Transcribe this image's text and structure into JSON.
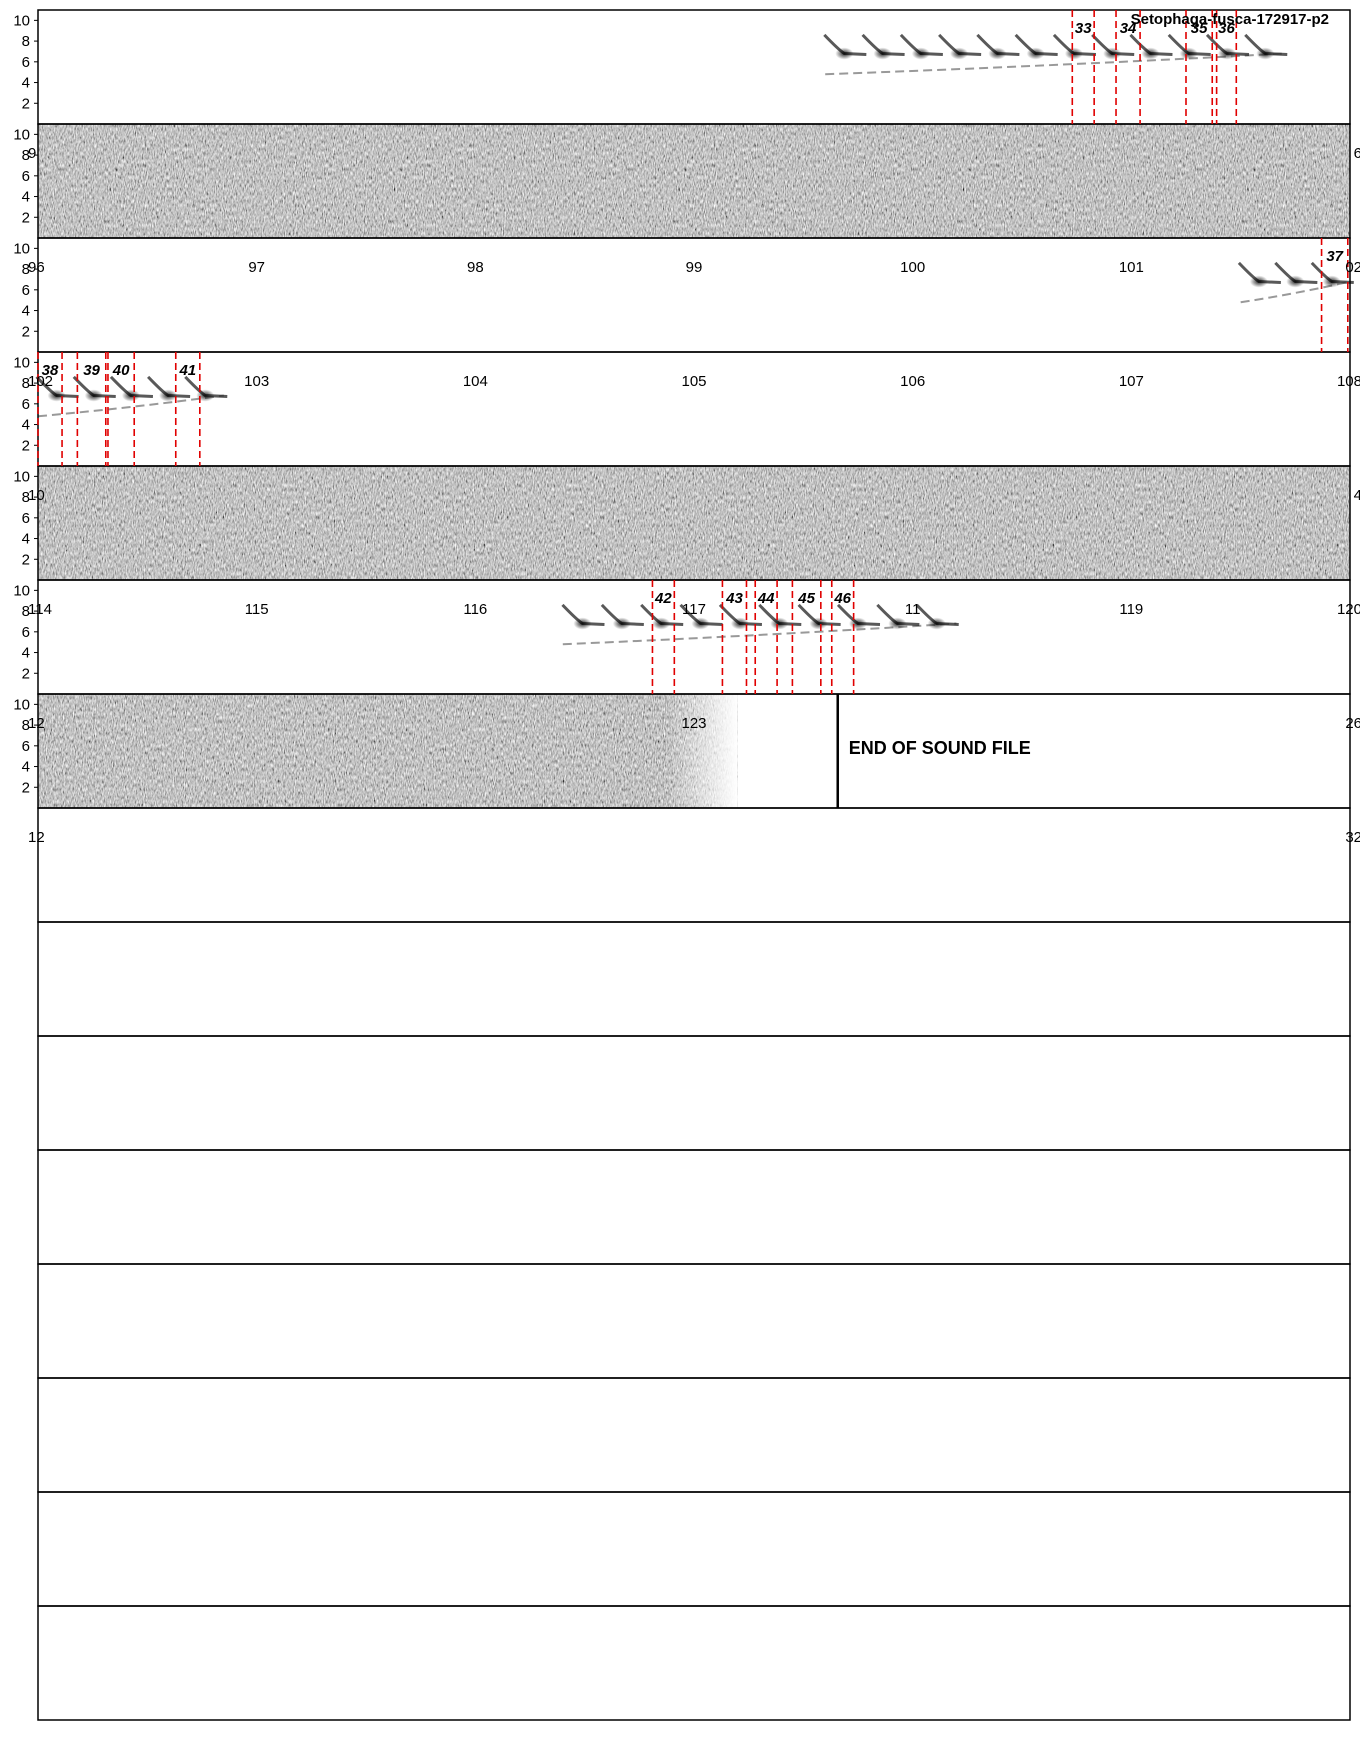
{
  "title": "Setophaga-fusca-172917-p2",
  "end_text": "END OF SOUND FILE",
  "colors": {
    "marker": "#e00000",
    "frame": "#000000",
    "paper": "#ffffff"
  },
  "chart_data": {
    "type": "spectrogram",
    "title": "Setophaga-fusca-172917-p2",
    "seconds_per_row": 6,
    "frequency_ticks_khz": [
      10,
      8,
      6,
      4,
      2
    ],
    "row_count": 15,
    "rows": [
      {
        "start": 84,
        "end": 90,
        "noise": false,
        "ticks": [],
        "freq_ticks": [
          "10",
          "8",
          "6",
          "4",
          "2"
        ]
      },
      {
        "start": 90,
        "end": 96,
        "noise": true,
        "ticks": [
          "9",
          "6"
        ],
        "freq_ticks": [
          "10",
          "8",
          "6",
          "4",
          "2"
        ]
      },
      {
        "start": 96,
        "end": 102,
        "noise": false,
        "ticks": [
          "96",
          "97",
          "98",
          "99",
          "100",
          "101",
          "02"
        ],
        "freq_ticks": [
          "10",
          "8",
          "6",
          "4",
          "2"
        ]
      },
      {
        "start": 102,
        "end": 108,
        "noise": false,
        "ticks": [
          "102",
          "103",
          "104",
          "105",
          "106",
          "107",
          "108"
        ],
        "freq_ticks": [
          "10",
          "8",
          "6",
          "4",
          "2"
        ]
      },
      {
        "start": 108,
        "end": 114,
        "noise": true,
        "ticks": [
          "10",
          "4"
        ],
        "freq_ticks": [
          "10",
          "8",
          "6",
          "4",
          "2"
        ]
      },
      {
        "start": 114,
        "end": 120,
        "noise": false,
        "ticks": [
          "114",
          "115",
          "116",
          "117",
          "11",
          "119",
          "120"
        ],
        "freq_ticks": [
          "10",
          "8",
          "6",
          "4",
          "2"
        ]
      },
      {
        "start": 120,
        "end": 126,
        "noise": true,
        "sound_end": 123.2,
        "ticks": [
          "12",
          "123",
          "26"
        ],
        "freq_ticks": [
          "10",
          "8",
          "6",
          "4",
          "2"
        ]
      },
      {
        "start": 126,
        "end": 132,
        "noise": false,
        "ticks": [
          "12",
          "32"
        ],
        "freq_ticks": []
      },
      {
        "start": 132,
        "end": 138,
        "noise": false,
        "ticks": [],
        "freq_ticks": []
      },
      {
        "start": 138,
        "end": 144,
        "noise": false,
        "ticks": [],
        "freq_ticks": []
      },
      {
        "start": 144,
        "end": 150,
        "noise": false,
        "ticks": [],
        "freq_ticks": []
      },
      {
        "start": 150,
        "end": 156,
        "noise": false,
        "ticks": [],
        "freq_ticks": []
      },
      {
        "start": 156,
        "end": 162,
        "noise": false,
        "ticks": [],
        "freq_ticks": []
      },
      {
        "start": 162,
        "end": 168,
        "noise": false,
        "ticks": [],
        "freq_ticks": []
      },
      {
        "start": 168,
        "end": 174,
        "noise": false,
        "ticks": [],
        "freq_ticks": []
      }
    ],
    "segments": [
      {
        "label": "33",
        "start": 88.73,
        "end": 88.83
      },
      {
        "label": "34",
        "start": 88.93,
        "end": 89.04
      },
      {
        "label": "35",
        "start": 89.25,
        "end": 89.37
      },
      {
        "label": "36",
        "start": 89.39,
        "end": 89.48
      },
      {
        "label": "37",
        "start": 101.87,
        "end": 101.99
      },
      {
        "label": "38",
        "start": 102.0,
        "end": 102.11
      },
      {
        "label": "39",
        "start": 102.18,
        "end": 102.31
      },
      {
        "label": "40",
        "start": 102.32,
        "end": 102.44
      },
      {
        "label": "41",
        "start": 102.63,
        "end": 102.74
      },
      {
        "label": "42",
        "start": 116.81,
        "end": 116.91
      },
      {
        "label": "43",
        "start": 117.13,
        "end": 117.24
      },
      {
        "label": "44",
        "start": 117.28,
        "end": 117.38
      },
      {
        "label": "45",
        "start": 117.45,
        "end": 117.58
      },
      {
        "label": "46",
        "start": 117.63,
        "end": 117.73
      }
    ],
    "song_events": [
      {
        "start": 87.6,
        "end": 89.7
      },
      {
        "start": 101.5,
        "end": 102.0
      },
      {
        "start": 102.0,
        "end": 102.85
      },
      {
        "start": 116.4,
        "end": 118.2
      }
    ]
  }
}
